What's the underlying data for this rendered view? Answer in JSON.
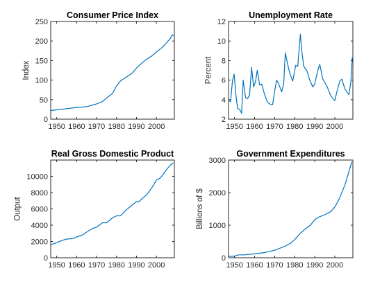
{
  "series_color": "#0072bd",
  "chart_data": [
    {
      "type": "line",
      "title": "Consumer Price Index",
      "xlabel": "",
      "ylabel": "Index",
      "xlim": [
        1947,
        2009
      ],
      "ylim": [
        0,
        250
      ],
      "xticks": [
        "1950",
        "1960",
        "1970",
        "1980",
        "1990",
        "2000"
      ],
      "xtick_values": [
        1950,
        1960,
        1970,
        1980,
        1990,
        2000
      ],
      "yticks": [
        "0",
        "50",
        "100",
        "150",
        "200",
        "250"
      ],
      "ytick_values": [
        0,
        50,
        100,
        150,
        200,
        250
      ],
      "x": [
        1947,
        1950,
        1955,
        1960,
        1965,
        1970,
        1973,
        1975,
        1978,
        1980,
        1982,
        1985,
        1988,
        1990,
        1993,
        1995,
        1998,
        2000,
        2003,
        2005,
        2007,
        2008,
        2008.5
      ],
      "y": [
        22,
        24,
        27,
        30,
        32,
        39,
        45,
        54,
        66,
        85,
        98,
        108,
        118,
        131,
        145,
        153,
        163,
        172,
        184,
        195,
        207,
        216,
        213
      ]
    },
    {
      "type": "line",
      "title": "Unemployment Rate",
      "xlabel": "",
      "ylabel": "Percent",
      "xlim": [
        1947,
        2009
      ],
      "ylim": [
        2,
        12
      ],
      "xticks": [
        "1950",
        "1960",
        "1970",
        "1980",
        "1990",
        "2000"
      ],
      "xtick_values": [
        1950,
        1960,
        1970,
        1980,
        1990,
        2000
      ],
      "yticks": [
        "2",
        "4",
        "6",
        "8",
        "10",
        "12"
      ],
      "ytick_values": [
        2,
        4,
        6,
        8,
        10,
        12
      ],
      "x": [
        1947,
        1948,
        1949,
        1949.8,
        1950.5,
        1951.5,
        1952.5,
        1953.5,
        1954.3,
        1955.5,
        1956.5,
        1957.5,
        1958.5,
        1959.5,
        1960.5,
        1961.3,
        1962.5,
        1963.5,
        1965,
        1966.5,
        1968,
        1969,
        1970,
        1971,
        1972,
        1973.5,
        1974.5,
        1975.3,
        1976.5,
        1977.5,
        1979,
        1980.5,
        1981.5,
        1982.8,
        1983.5,
        1984.5,
        1986,
        1987.5,
        1989,
        1990,
        1991.5,
        1992.5,
        1994,
        1996,
        1998,
        2000,
        2001,
        2002.5,
        2003.5,
        2005,
        2007,
        2008,
        2008.7
      ],
      "y": [
        3.9,
        3.8,
        6.0,
        6.6,
        4.8,
        3.1,
        3.0,
        2.6,
        6.0,
        4.2,
        4.1,
        4.5,
        7.3,
        5.3,
        5.9,
        7.0,
        5.5,
        5.6,
        4.5,
        3.7,
        3.5,
        3.5,
        4.9,
        6.0,
        5.6,
        4.8,
        5.6,
        8.8,
        7.6,
        6.7,
        5.9,
        7.5,
        7.4,
        10.7,
        9.0,
        7.4,
        7.0,
        6.0,
        5.3,
        5.6,
        7.0,
        7.6,
        6.1,
        5.4,
        4.4,
        3.9,
        4.8,
        5.9,
        6.1,
        5.1,
        4.5,
        5.8,
        8.3
      ]
    },
    {
      "type": "line",
      "title": "Real Gross Domestic Product",
      "xlabel": "",
      "ylabel": "Output",
      "xlim": [
        1947,
        2009
      ],
      "ylim": [
        0,
        12000
      ],
      "xticks": [
        "1950",
        "1960",
        "1970",
        "1980",
        "1990",
        "2000"
      ],
      "xtick_values": [
        1950,
        1960,
        1970,
        1980,
        1990,
        2000
      ],
      "yticks": [
        "0",
        "2000",
        "4000",
        "6000",
        "8000",
        "10000"
      ],
      "ytick_values": [
        0,
        2000,
        4000,
        6000,
        8000,
        10000
      ],
      "x": [
        1947,
        1950,
        1953,
        1955,
        1958,
        1960,
        1963,
        1965,
        1968,
        1970,
        1973,
        1975,
        1978,
        1980,
        1982,
        1985,
        1988,
        1990,
        1991,
        1993,
        1995,
        1998,
        2000,
        2002,
        2005,
        2007,
        2008.5
      ],
      "y": [
        1600,
        1850,
        2150,
        2300,
        2350,
        2550,
        2800,
        3150,
        3600,
        3750,
        4300,
        4300,
        4900,
        5150,
        5150,
        5900,
        6500,
        6900,
        6850,
        7300,
        7700,
        8700,
        9550,
        9800,
        10800,
        11400,
        11650
      ]
    },
    {
      "type": "line",
      "title": "Government Expenditures",
      "xlabel": "",
      "ylabel": "Billions of $",
      "xlim": [
        1947,
        2009
      ],
      "ylim": [
        0,
        3000
      ],
      "xticks": [
        "1950",
        "1960",
        "1970",
        "1980",
        "1990",
        "2000"
      ],
      "xtick_values": [
        1950,
        1960,
        1970,
        1980,
        1990,
        2000
      ],
      "yticks": [
        "0",
        "1000",
        "2000",
        "3000"
      ],
      "ytick_values": [
        0,
        1000,
        2000,
        3000
      ],
      "x": [
        1947,
        1950,
        1952,
        1955,
        1960,
        1965,
        1970,
        1975,
        1978,
        1980,
        1983,
        1985,
        1988,
        1990,
        1992,
        1995,
        1998,
        2000,
        2002,
        2005,
        2007,
        2008.5
      ],
      "y": [
        40,
        50,
        90,
        90,
        120,
        160,
        230,
        350,
        450,
        560,
        760,
        870,
        1010,
        1170,
        1250,
        1320,
        1420,
        1560,
        1780,
        2230,
        2640,
        2950
      ]
    }
  ]
}
